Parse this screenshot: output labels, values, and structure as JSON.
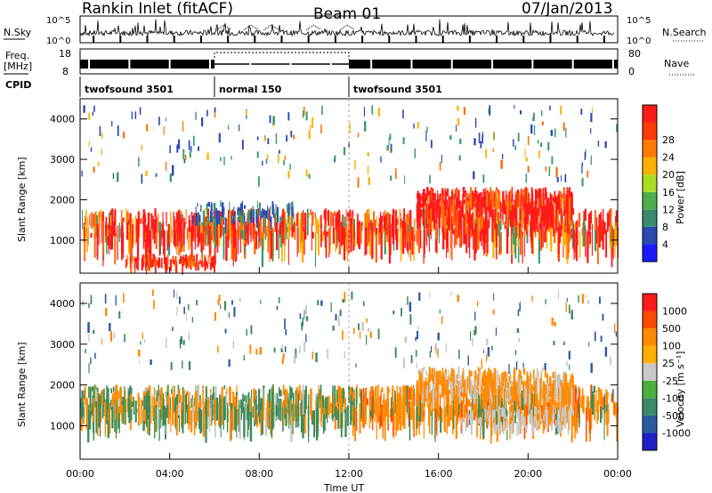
{
  "header": {
    "station": "Rankin Inlet (fitACF)",
    "beam": "Beam 01",
    "date": "07/Jan/2013"
  },
  "panels": {
    "nsky": {
      "label": "N.Sky",
      "y_top": "10^5",
      "y_bottom": "10^0",
      "right_label": "N.Search",
      "right_top": "10^5",
      "right_bottom": "10^0"
    },
    "freq": {
      "label_line1": "Freq.",
      "label_line2": "[MHz]",
      "y_top": "18",
      "y_bottom": "8",
      "right_label": "Nave",
      "right_top": "80",
      "right_bottom": "0"
    },
    "cpid": {
      "label": "CPID",
      "segments": [
        {
          "name": "twofsound 3501",
          "start_hour": 0,
          "end_hour": 6
        },
        {
          "name": "normal 150",
          "start_hour": 6,
          "end_hour": 12
        },
        {
          "name": "twofsound 3501",
          "start_hour": 12,
          "end_hour": 24
        }
      ]
    }
  },
  "chart_data": [
    {
      "type": "heatmap",
      "title": "",
      "xlabel": "Time UT",
      "ylabel": "Slant Range [km]",
      "x_ticks": [
        "00:00",
        "04:00",
        "08:00",
        "12:00",
        "16:00",
        "20:00",
        "00:00"
      ],
      "y_ticks": [
        1000,
        2000,
        3000,
        4000
      ],
      "ylim": [
        180,
        4500
      ],
      "colorbar_label": "Power [dB]",
      "colorbar_ticks": [
        "4",
        "8",
        "12",
        "16",
        "20",
        "24",
        "28"
      ],
      "colorbar_colors": [
        "#1a1aff",
        "#2a4ab0",
        "#3c8a6e",
        "#4cae4c",
        "#aadd22",
        "#ffb000",
        "#ff7a00",
        "#ff3c00",
        "#ff1a1a"
      ]
    },
    {
      "type": "heatmap",
      "title": "",
      "xlabel": "Time UT",
      "ylabel": "Slant Range [km]",
      "x_ticks": [
        "00:00",
        "04:00",
        "08:00",
        "12:00",
        "16:00",
        "20:00",
        "00:00"
      ],
      "y_ticks": [
        1000,
        2000,
        3000,
        4000
      ],
      "ylim": [
        180,
        4500
      ],
      "colorbar_label": "Velocity [m s⁻¹]",
      "colorbar_ticks": [
        "1000",
        "500",
        "100",
        "25",
        "-25",
        "-100",
        "-500",
        "-1000"
      ],
      "colorbar_colors": [
        "#2020c8",
        "#2a5aa0",
        "#3a8a6a",
        "#4cae3c",
        "#c8c8c8",
        "#ffb000",
        "#ff8a00",
        "#ff4a00",
        "#ff1a1a"
      ]
    }
  ],
  "scatter_colors": {
    "power_strong": "#ff1a1a",
    "power_mid": "#ff6a00",
    "power_green": "#3c9a6e",
    "power_blue": "#2a4ab0",
    "vel_green": "#3c8a5a",
    "vel_orange": "#ff8a00",
    "vel_gray": "#c8c8c8",
    "vel_blue": "#2a5aa0"
  }
}
